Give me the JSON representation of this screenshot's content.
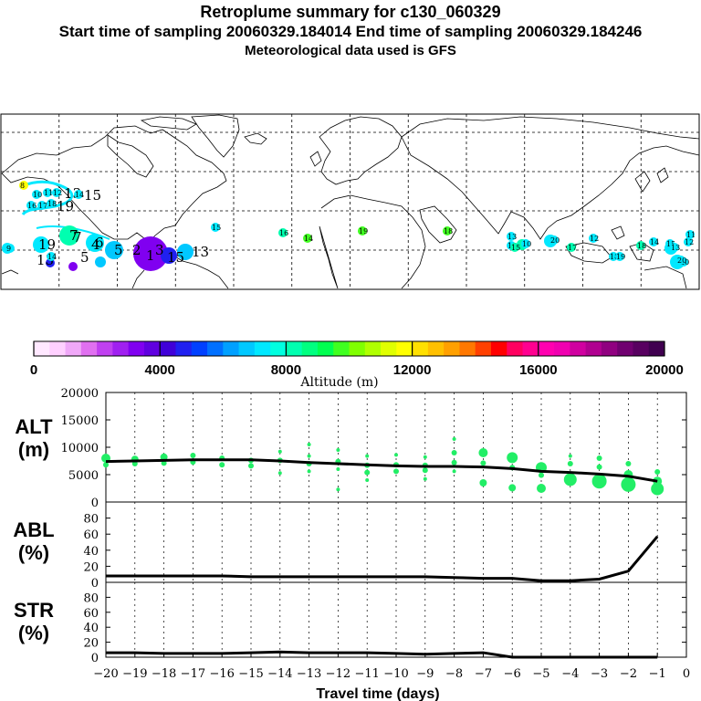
{
  "header": {
    "title": "Retroplume summary for c130_060329",
    "sampling": "Start time of sampling 20060329.184014     End time of sampling 20060329.184246",
    "met": "Meteorological data used is GFS"
  },
  "colors": {
    "colorbar": [
      "#ffe8ff",
      "#ffd0ff",
      "#f0a8f8",
      "#e070f0",
      "#c040f0",
      "#a020f0",
      "#8000f0",
      "#6000e0",
      "#4000d8",
      "#2020f0",
      "#0040ff",
      "#0070ff",
      "#00a0ff",
      "#00c8ff",
      "#00e8ff",
      "#00ffe0",
      "#00ffb0",
      "#00ff80",
      "#00ff50",
      "#40ff20",
      "#80ff00",
      "#b0ff00",
      "#e0ff00",
      "#ffff00",
      "#ffe000",
      "#ffc000",
      "#ffa000",
      "#ff7800",
      "#ff4000",
      "#ff0000",
      "#ff0060",
      "#ff0090",
      "#ff00b0",
      "#f000b0",
      "#d000a0",
      "#b00090",
      "#900080",
      "#700070",
      "#580060",
      "#400050"
    ],
    "plume_green": "#22ee66",
    "line": "#000000"
  },
  "colorbar": {
    "ticks": [
      "0",
      "4000",
      "8000",
      "12000",
      "16000",
      "20000"
    ],
    "label": "Altitude (m)"
  },
  "map": {
    "plume_labels": [
      {
        "t": "9",
        "c": "#00e8ff"
      },
      {
        "t": "19",
        "c": "#00e8ff"
      },
      {
        "t": "7",
        "c": "#00ffb0"
      },
      {
        "t": "6",
        "c": "#00e8ff"
      },
      {
        "t": "5",
        "c": "#00c8ff"
      },
      {
        "t": "4",
        "c": "#0070ff"
      },
      {
        "t": "2",
        "c": "#6000e0"
      },
      {
        "t": "1",
        "c": "#8000f0"
      },
      {
        "t": "3",
        "c": "#2020f0"
      },
      {
        "t": "15",
        "c": "#00c8ff"
      },
      {
        "t": "13",
        "c": "#00e8ff"
      },
      {
        "t": "13",
        "c": "#00c8ff"
      },
      {
        "t": "14",
        "c": "#00e8ff"
      },
      {
        "t": "7",
        "c": "#00ffb0"
      },
      {
        "t": "5",
        "c": "#00e8ff"
      },
      {
        "t": "20",
        "c": "#00e8ff"
      },
      {
        "t": "18",
        "c": "#00e8ff"
      },
      {
        "t": "16",
        "c": "#00ffb0"
      },
      {
        "t": "14",
        "c": "#40ff20"
      },
      {
        "t": "19",
        "c": "#40ff20"
      },
      {
        "t": "18",
        "c": "#40ff20"
      },
      {
        "t": "10",
        "c": "#00e8ff"
      },
      {
        "t": "20",
        "c": "#00e8ff"
      },
      {
        "t": "17",
        "c": "#00ffb0"
      },
      {
        "t": "12",
        "c": "#00e8ff"
      },
      {
        "t": "19",
        "c": "#00e8ff"
      },
      {
        "t": "18",
        "c": "#00ffb0"
      },
      {
        "t": "14",
        "c": "#00e8ff"
      },
      {
        "t": "15",
        "c": "#00e8ff"
      },
      {
        "t": "13",
        "c": "#00e8ff"
      },
      {
        "t": "12",
        "c": "#00e8ff"
      },
      {
        "t": "16",
        "c": "#00e8ff"
      },
      {
        "t": "20",
        "c": "#00e8ff"
      },
      {
        "t": "13",
        "c": "#00e8ff"
      },
      {
        "t": "15",
        "c": "#00ffb0"
      },
      {
        "t": "11",
        "c": "#00e8ff"
      },
      {
        "t": "8",
        "c": "#ffff00"
      },
      {
        "t": "10",
        "c": "#00e8ff"
      },
      {
        "t": "11",
        "c": "#00e8ff"
      },
      {
        "t": "12",
        "c": "#00e8ff"
      },
      {
        "t": "13",
        "c": "#00e8ff"
      },
      {
        "t": "14",
        "c": "#00e8ff"
      },
      {
        "t": "15",
        "c": "#00e8ff"
      },
      {
        "t": "16",
        "c": "#00e8ff"
      },
      {
        "t": "17",
        "c": "#00e8ff"
      },
      {
        "t": "18",
        "c": "#00e8ff"
      },
      {
        "t": "19",
        "c": "#00e8ff"
      },
      {
        "t": "15",
        "c": "#00e8ff"
      }
    ]
  },
  "chart_data": [
    {
      "type": "line",
      "panel": "ALT",
      "ylabel_line1": "ALT",
      "ylabel_line2": "(m)",
      "ylim": [
        0,
        20000
      ],
      "yticks": [
        "0",
        "5000",
        "10000",
        "15000",
        "20000"
      ],
      "x": [
        -20,
        -19,
        -18,
        -17,
        -16,
        -15,
        -14,
        -13,
        -12,
        -11,
        -10,
        -9,
        -8,
        -7,
        -6,
        -5,
        -4,
        -3,
        -2,
        -1
      ],
      "values": [
        7400,
        7500,
        7600,
        7700,
        7700,
        7700,
        7500,
        7200,
        7000,
        6800,
        6600,
        6500,
        6500,
        6400,
        6100,
        5600,
        5400,
        5100,
        4700,
        3800
      ],
      "scatter": [
        {
          "x": -20,
          "y": 8000,
          "r": 5
        },
        {
          "x": -20,
          "y": 6800,
          "r": 3
        },
        {
          "x": -19,
          "y": 7800,
          "r": 4
        },
        {
          "x": -19,
          "y": 7000,
          "r": 3
        },
        {
          "x": -18,
          "y": 8200,
          "r": 4
        },
        {
          "x": -18,
          "y": 7100,
          "r": 3
        },
        {
          "x": -17,
          "y": 8500,
          "r": 3
        },
        {
          "x": -17,
          "y": 7300,
          "r": 3
        },
        {
          "x": -16,
          "y": 8000,
          "r": 3
        },
        {
          "x": -16,
          "y": 6800,
          "r": 3
        },
        {
          "x": -15,
          "y": 7600,
          "r": 3
        },
        {
          "x": -15,
          "y": 6600,
          "r": 3
        },
        {
          "x": -14,
          "y": 9200,
          "r": 2
        },
        {
          "x": -14,
          "y": 7600,
          "r": 3
        },
        {
          "x": -14,
          "y": 5300,
          "r": 2
        },
        {
          "x": -13,
          "y": 10500,
          "r": 2
        },
        {
          "x": -13,
          "y": 8400,
          "r": 2
        },
        {
          "x": -13,
          "y": 7000,
          "r": 3
        },
        {
          "x": -13,
          "y": 5600,
          "r": 2
        },
        {
          "x": -12,
          "y": 9500,
          "r": 2
        },
        {
          "x": -12,
          "y": 7400,
          "r": 3
        },
        {
          "x": -12,
          "y": 6000,
          "r": 2
        },
        {
          "x": -12,
          "y": 2300,
          "r": 2
        },
        {
          "x": -11,
          "y": 8400,
          "r": 2
        },
        {
          "x": -11,
          "y": 6700,
          "r": 3
        },
        {
          "x": -11,
          "y": 5400,
          "r": 3
        },
        {
          "x": -11,
          "y": 4000,
          "r": 2
        },
        {
          "x": -10,
          "y": 8600,
          "r": 2
        },
        {
          "x": -10,
          "y": 6800,
          "r": 3
        },
        {
          "x": -10,
          "y": 5600,
          "r": 3
        },
        {
          "x": -9,
          "y": 8200,
          "r": 2
        },
        {
          "x": -9,
          "y": 6700,
          "r": 3
        },
        {
          "x": -9,
          "y": 5800,
          "r": 3
        },
        {
          "x": -9,
          "y": 4200,
          "r": 2
        },
        {
          "x": -8,
          "y": 11500,
          "r": 2
        },
        {
          "x": -8,
          "y": 9000,
          "r": 3
        },
        {
          "x": -8,
          "y": 7200,
          "r": 3
        },
        {
          "x": -8,
          "y": 5600,
          "r": 2
        },
        {
          "x": -7,
          "y": 9000,
          "r": 5
        },
        {
          "x": -7,
          "y": 7100,
          "r": 3
        },
        {
          "x": -7,
          "y": 3500,
          "r": 4
        },
        {
          "x": -6,
          "y": 8100,
          "r": 6
        },
        {
          "x": -6,
          "y": 6300,
          "r": 3
        },
        {
          "x": -6,
          "y": 2600,
          "r": 4
        },
        {
          "x": -5,
          "y": 6300,
          "r": 6
        },
        {
          "x": -5,
          "y": 4900,
          "r": 3
        },
        {
          "x": -5,
          "y": 2500,
          "r": 5
        },
        {
          "x": -4,
          "y": 8400,
          "r": 2
        },
        {
          "x": -4,
          "y": 7000,
          "r": 3
        },
        {
          "x": -4,
          "y": 4100,
          "r": 7
        },
        {
          "x": -3,
          "y": 8000,
          "r": 3
        },
        {
          "x": -3,
          "y": 6400,
          "r": 3
        },
        {
          "x": -3,
          "y": 3800,
          "r": 8
        },
        {
          "x": -2,
          "y": 7000,
          "r": 3
        },
        {
          "x": -2,
          "y": 5000,
          "r": 5
        },
        {
          "x": -2,
          "y": 3200,
          "r": 8
        },
        {
          "x": -1,
          "y": 5500,
          "r": 3
        },
        {
          "x": -1,
          "y": 3800,
          "r": 5
        },
        {
          "x": -1,
          "y": 2400,
          "r": 7
        }
      ]
    },
    {
      "type": "line",
      "panel": "ABL",
      "ylabel_line1": "ABL",
      "ylabel_line2": "(%)",
      "ylim": [
        0,
        100
      ],
      "yticks": [
        "0",
        "20",
        "40",
        "60",
        "80"
      ],
      "x": [
        -20,
        -19,
        -18,
        -17,
        -16,
        -15,
        -14,
        -13,
        -12,
        -11,
        -10,
        -9,
        -8,
        -7,
        -6,
        -5,
        -4,
        -3,
        -2,
        -1
      ],
      "values": [
        8,
        8,
        8,
        8,
        8,
        7,
        7,
        7,
        7,
        7,
        7,
        7,
        6,
        5,
        5,
        2,
        2,
        4,
        14,
        57
      ]
    },
    {
      "type": "line",
      "panel": "STR",
      "ylabel_line1": "STR",
      "ylabel_line2": "(%)",
      "ylim": [
        0,
        100
      ],
      "yticks": [
        "0",
        "20",
        "40",
        "60",
        "80"
      ],
      "x": [
        -20,
        -19,
        -18,
        -17,
        -16,
        -15,
        -14,
        -13,
        -12,
        -11,
        -10,
        -9,
        -8,
        -7,
        -6,
        -5,
        -4,
        -3,
        -2,
        -1
      ],
      "values": [
        6,
        6,
        5,
        5,
        5,
        6,
        7,
        6,
        6,
        6,
        5,
        4,
        5,
        6,
        0,
        0,
        0,
        0,
        0,
        0
      ],
      "xticks": [
        "−20",
        "−19",
        "−18",
        "−17",
        "−16",
        "−15",
        "−14",
        "−13",
        "−12",
        "−11",
        "−10",
        "−9",
        "−8",
        "−7",
        "−6",
        "−5",
        "−4",
        "−3",
        "−2",
        "−1",
        "0"
      ],
      "xlabel": "Travel time (days)"
    }
  ]
}
